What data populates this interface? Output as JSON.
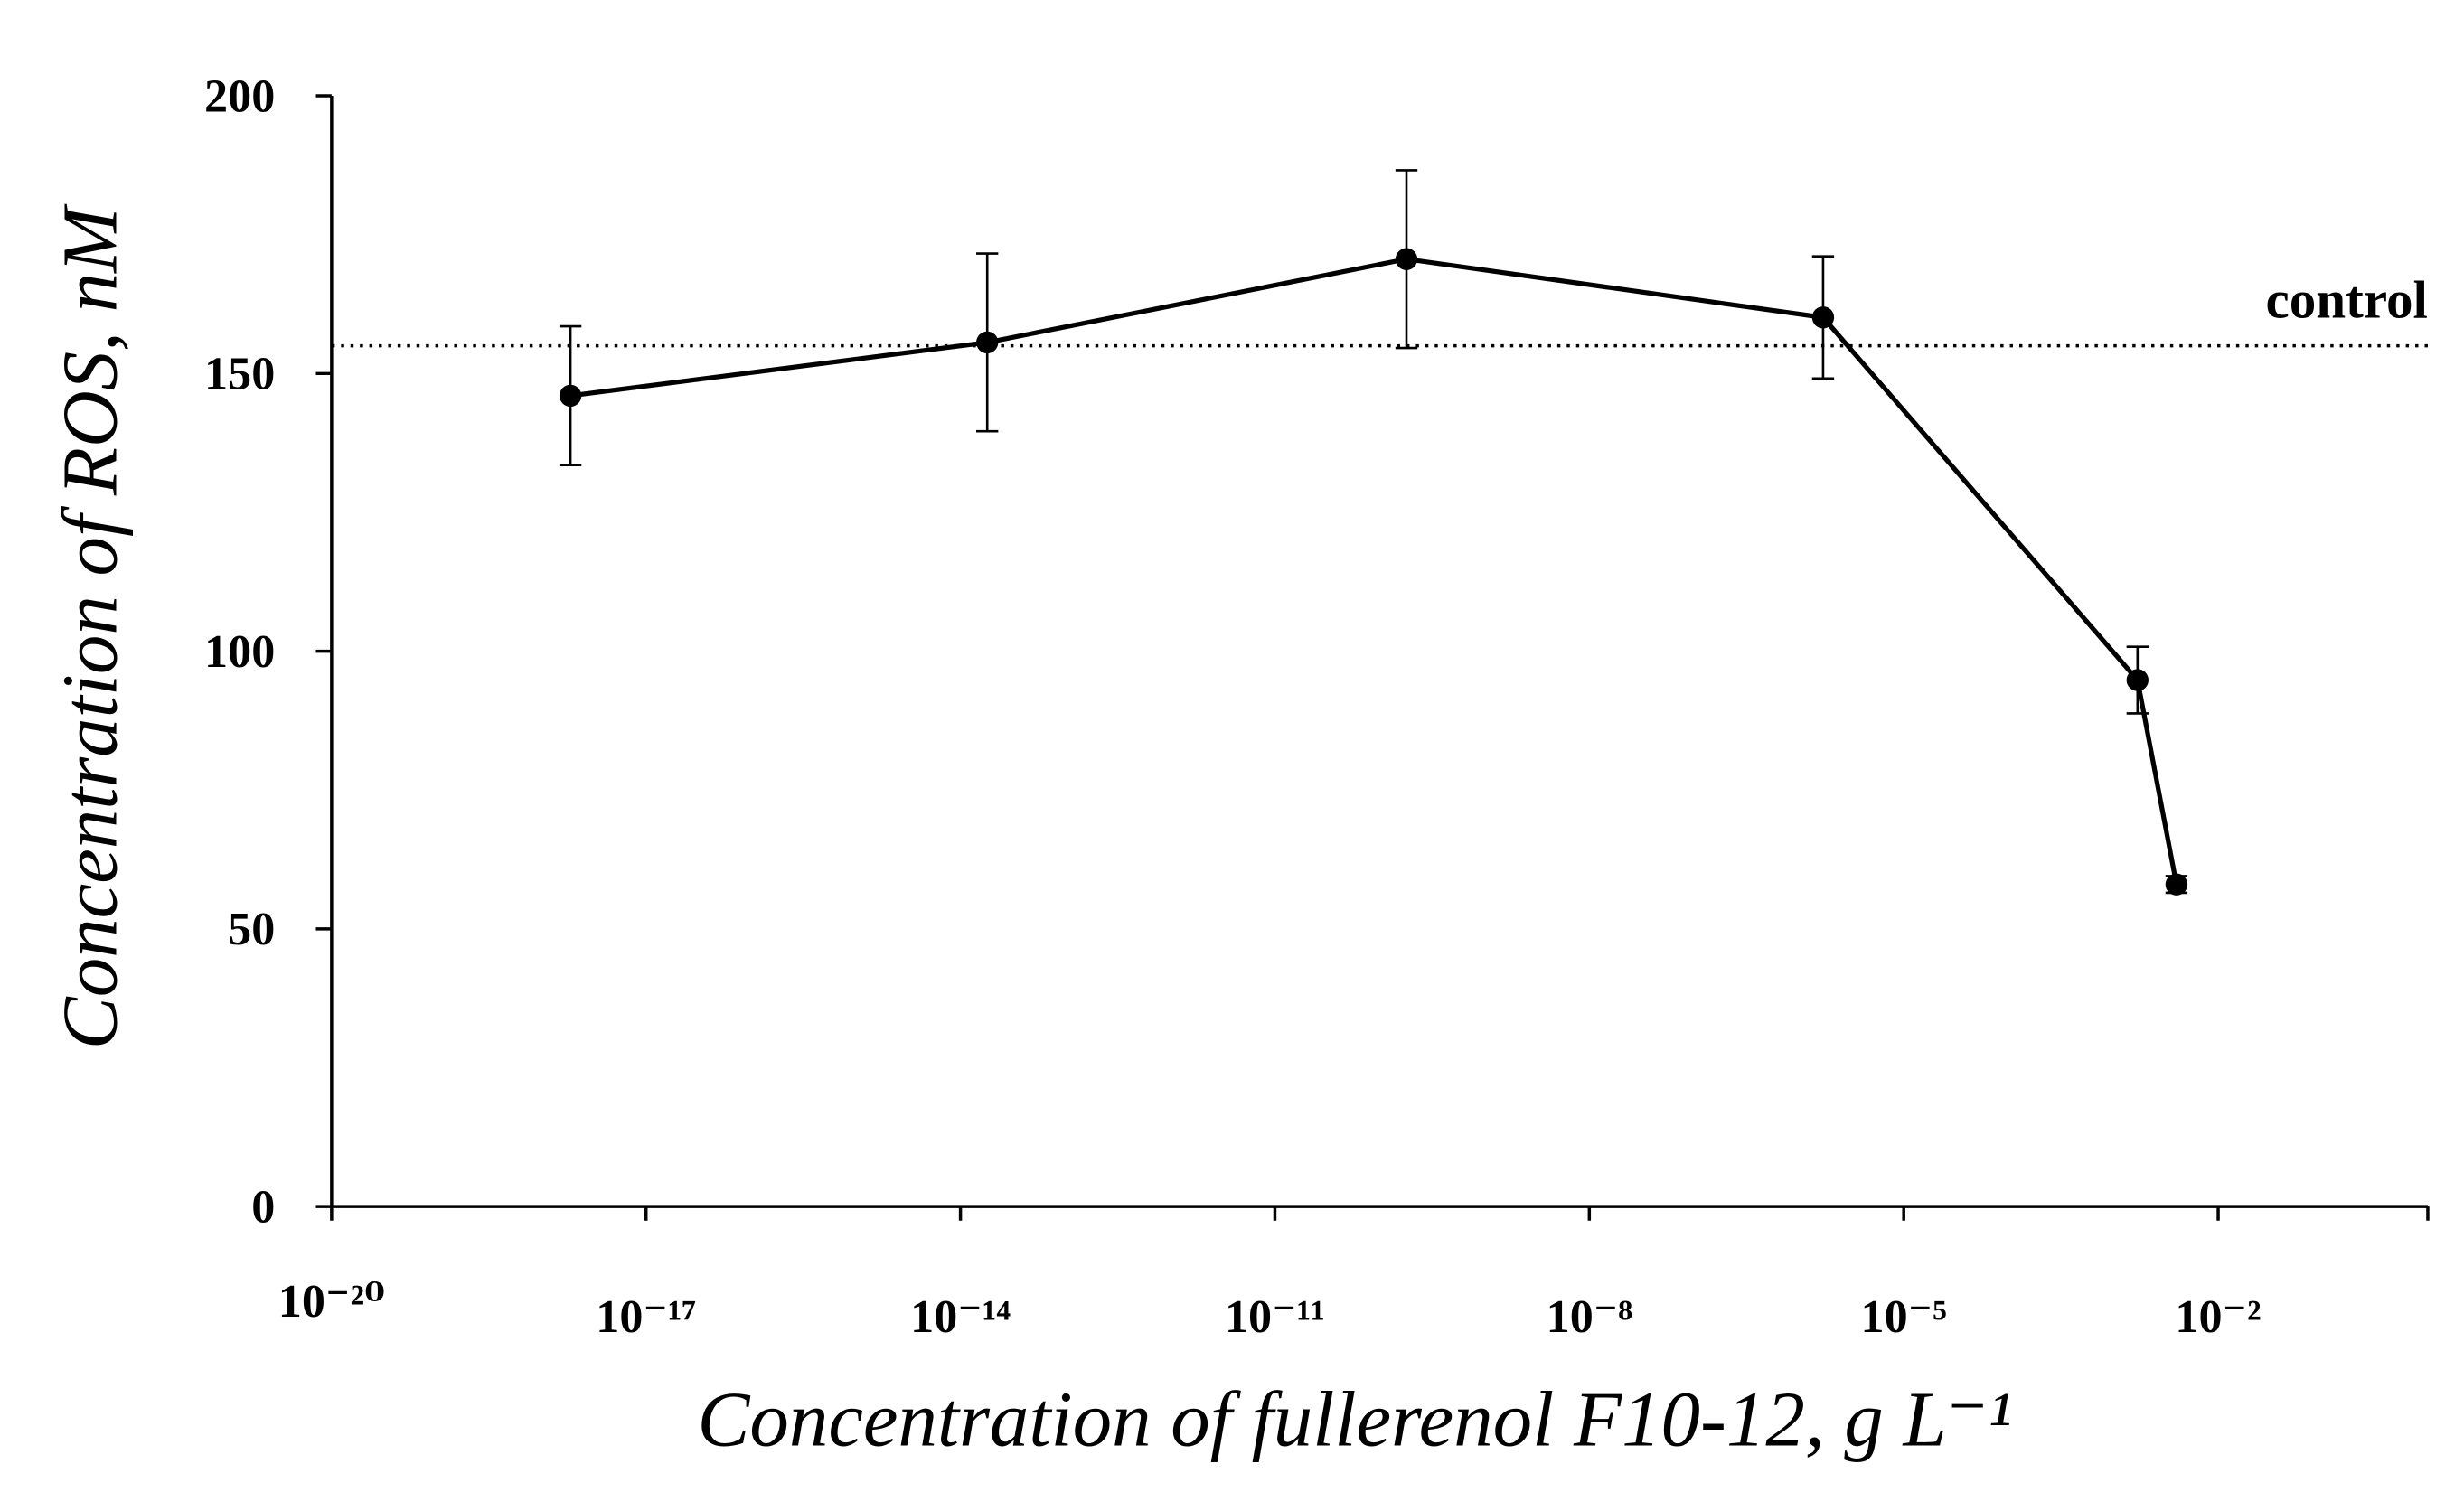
{
  "chart_data": {
    "type": "line",
    "x_label": "Concentration of fullerenol F10-12, g L⁻¹",
    "y_label": "Concentration of ROS, nM",
    "xscale": "log",
    "x": [
      1.9e-18,
      1.8e-14,
      1.8e-10,
      1.7e-06,
      0.0017,
      0.004
    ],
    "series": [
      {
        "color": "#000000",
        "values": [
          146,
          155.6,
          170.6,
          160.1,
          94.8,
          58
        ],
        "errors": [
          12.5,
          16,
          16,
          11,
          6,
          1.5
        ]
      }
    ],
    "reference_line": {
      "value": 155,
      "label": "control"
    },
    "xlim": [
      1e-20,
      1
    ],
    "xticks": [
      {
        "value": 1e-20,
        "label": "10⁻²⁰"
      },
      {
        "value": 1e-17,
        "label": "10⁻¹⁷"
      },
      {
        "value": 1e-14,
        "label": "10⁻¹⁴"
      },
      {
        "value": 1e-11,
        "label": "10⁻¹¹"
      },
      {
        "value": 1e-08,
        "label": "10⁻⁸"
      },
      {
        "value": 1e-05,
        "label": "10⁻⁵"
      },
      {
        "value": 0.01,
        "label": "10⁻²"
      }
    ],
    "ylim": [
      0,
      200
    ],
    "yticks": [
      0,
      50,
      100,
      150,
      200
    ],
    "grid": false
  }
}
